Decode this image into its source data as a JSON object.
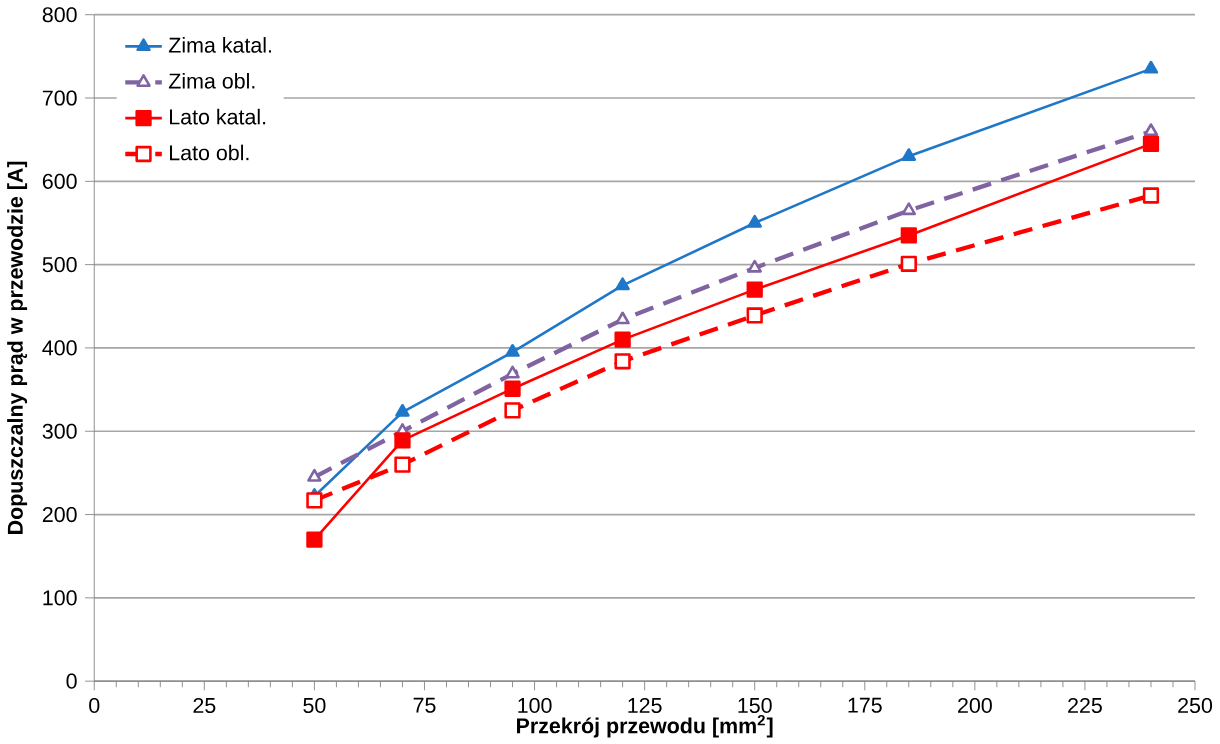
{
  "chart_data": {
    "type": "line",
    "xlabel": "Przekrój przewodu [mm$^{2}$]",
    "ylabel": "Dopuszczalny prąd w przewodzie [A]",
    "x": [
      50,
      70,
      95,
      120,
      150,
      185,
      240
    ],
    "series": [
      {
        "name": "Zima katal.",
        "color": "#1f77c8",
        "values": [
          222,
          323,
          395,
          475,
          550,
          630,
          735
        ],
        "marker": "triangle",
        "line_style": "solid"
      },
      {
        "name": "Zima obl.",
        "color": "#8064a2",
        "values": [
          245,
          300,
          369,
          434,
          496,
          565,
          660
        ],
        "marker": "triangle",
        "line_style": "dashed"
      },
      {
        "name": "Lato katal.",
        "color": "#ff0000",
        "values": [
          170,
          289,
          351,
          410,
          470,
          535,
          645
        ],
        "marker": "square",
        "line_style": "solid"
      },
      {
        "name": "Lato obl.",
        "color": "#ff0000",
        "values": [
          217,
          260,
          325,
          384,
          439,
          501,
          583
        ],
        "marker": "square",
        "line_style": "dashed"
      }
    ],
    "xlim": [
      0,
      250
    ],
    "ylim": [
      0,
      800
    ],
    "xticks": [
      0,
      25,
      50,
      75,
      100,
      125,
      150,
      175,
      200,
      225,
      250
    ],
    "yticks": [
      0,
      100,
      200,
      300,
      400,
      500,
      600,
      700,
      800
    ],
    "grid": "y",
    "legend": "top left"
  }
}
